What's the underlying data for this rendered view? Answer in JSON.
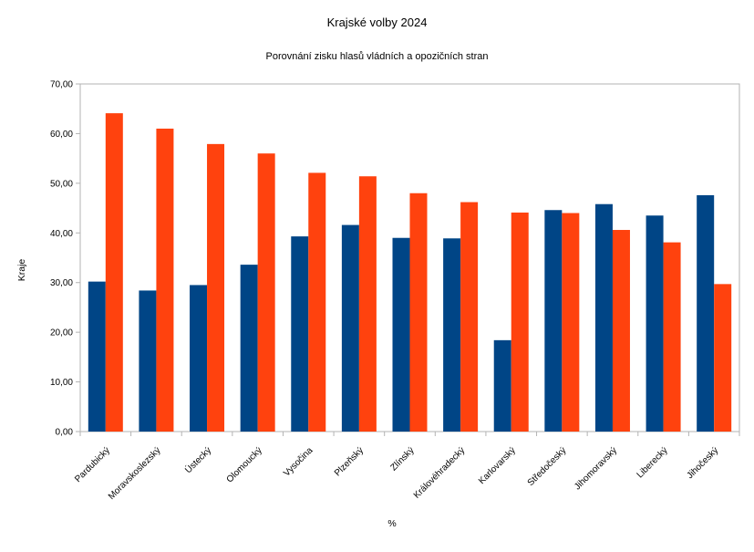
{
  "chart_data": {
    "type": "bar",
    "title": "Krajské volby 2024",
    "subtitle": "Porovnání zisku hlasů vládních a opozičních stran",
    "xlabel": "%",
    "ylabel": "Kraje",
    "categories": [
      "Pardubický",
      "Moravskoslezský",
      "Ústecký",
      "Olomoucký",
      "Vysočina",
      "Plzeňský",
      "Zlínský",
      "Královéhradecký",
      "Karlovarský",
      "Středočeský",
      "Jihomoravský",
      "Liberecký",
      "Jihočeský"
    ],
    "series": [
      {
        "name": "series-1-blue",
        "color": "#004586",
        "values": [
          30.2,
          28.4,
          29.5,
          33.6,
          39.3,
          41.6,
          39.0,
          38.9,
          18.4,
          44.6,
          45.8,
          43.5,
          47.6
        ]
      },
      {
        "name": "series-2-orange",
        "color": "#FF420E",
        "values": [
          64.1,
          61.0,
          57.9,
          56.0,
          52.1,
          51.4,
          48.0,
          46.2,
          44.1,
          44.0,
          40.6,
          38.1,
          29.7
        ]
      }
    ],
    "ylim": [
      0,
      70
    ],
    "ytick_step": 10,
    "ytick_labels": [
      "0,00",
      "10,00",
      "20,00",
      "30,00",
      "40,00",
      "50,00",
      "60,00",
      "70,00"
    ],
    "grid": false,
    "legend": "none",
    "axis_color": "#b3b3b3"
  }
}
